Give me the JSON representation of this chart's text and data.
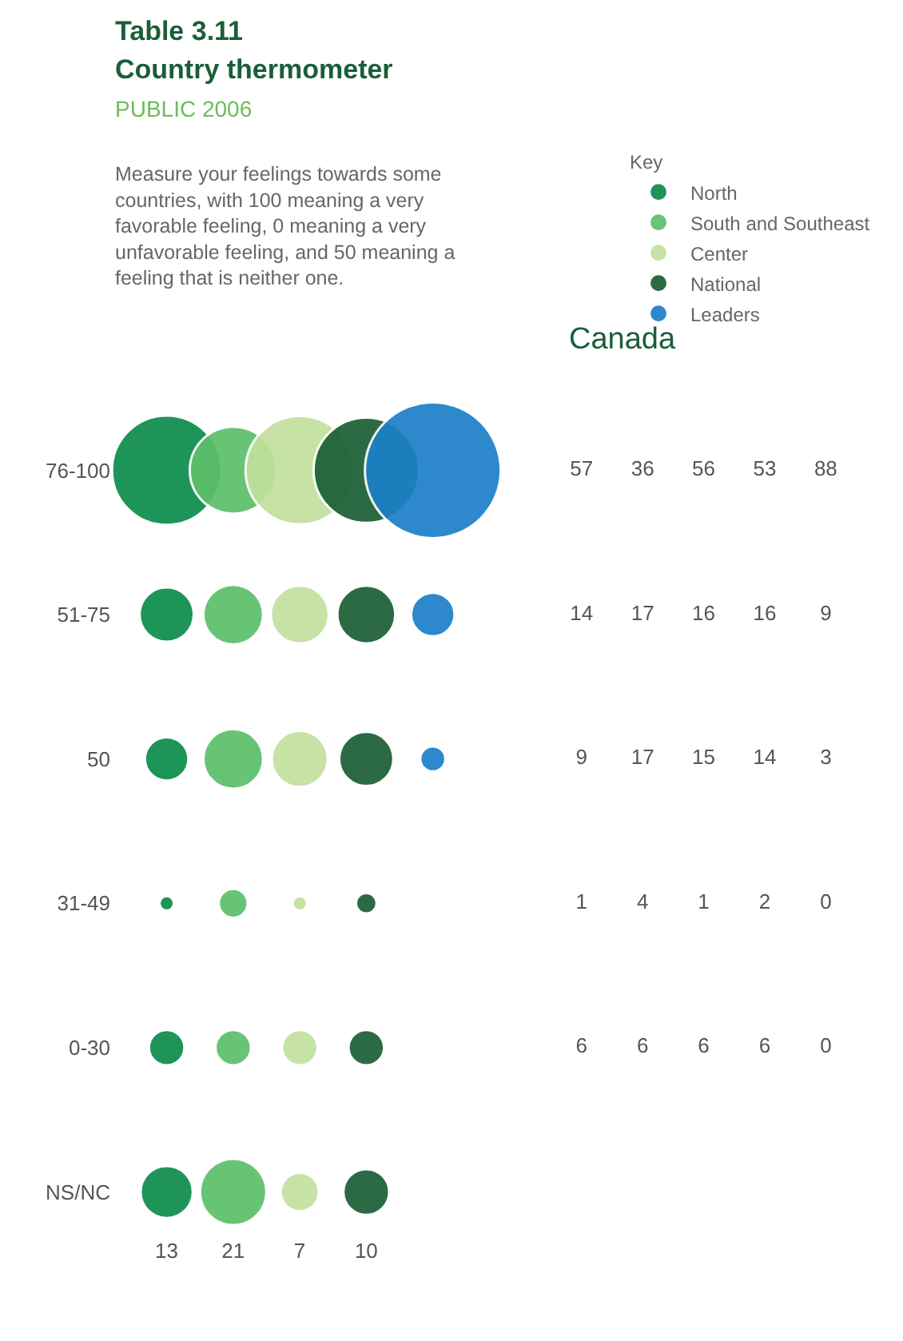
{
  "chart_data": {
    "type": "other",
    "title": "Country thermometer",
    "subtitle": "PUBLIC 2006",
    "annotations": [
      "Table 3.11",
      "Measure your feelings towards some countries, with 100 meaning a very favorable feeling, 0 meaning a very unfavorable feeling, and 50 meaning a feeling that is neither one.",
      "Canada"
    ],
    "legend_title": "Key",
    "legend": "top right",
    "categories": [
      "76-100",
      "51-75",
      "50",
      "31-49",
      "0-30",
      "NS/NC"
    ],
    "series": [
      {
        "name": "North",
        "color": "#0b8c4c",
        "values": [
          57,
          14,
          9,
          1,
          6,
          13
        ]
      },
      {
        "name": "South and Southeast",
        "color": "#5cbf6a",
        "values": [
          36,
          17,
          17,
          4,
          6,
          21
        ]
      },
      {
        "name": "Center",
        "color": "#c3e09e",
        "values": [
          56,
          16,
          15,
          1,
          6,
          7
        ]
      },
      {
        "name": "National",
        "color": "#1b5e35",
        "values": [
          53,
          16,
          14,
          2,
          6,
          10
        ]
      },
      {
        "name": "Leaders",
        "color": "#1c80c8",
        "values": [
          88,
          9,
          3,
          0,
          0,
          null
        ]
      }
    ],
    "data_labels": true
  }
}
